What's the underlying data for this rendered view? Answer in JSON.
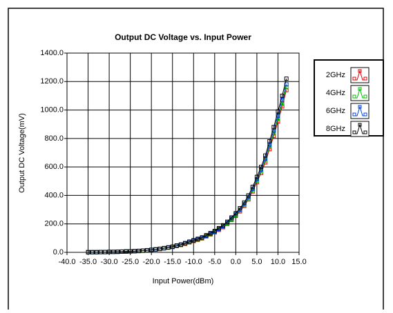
{
  "chart_data": {
    "type": "line",
    "title": "Output DC Voltage vs. Input Power",
    "x_label": "Input Power(dBm)",
    "y_label": "Output DC Voltage(mV)",
    "xlim": [
      -40,
      15
    ],
    "ylim": [
      0,
      1400
    ],
    "xticks": [
      {
        "value": -40,
        "label": "-40.0"
      },
      {
        "value": -35,
        "label": "-35.0"
      },
      {
        "value": -30,
        "label": "-30.0"
      },
      {
        "value": -25,
        "label": "-25.0"
      },
      {
        "value": -20,
        "label": "-20.0"
      },
      {
        "value": -15,
        "label": "-15.0"
      },
      {
        "value": -10,
        "label": "-10.0"
      },
      {
        "value": -5,
        "label": "-5.0"
      },
      {
        "value": 0,
        "label": "0.0"
      },
      {
        "value": 5,
        "label": "5.0"
      },
      {
        "value": 10,
        "label": "10.0"
      },
      {
        "value": 15,
        "label": "15.0"
      }
    ],
    "yticks": [
      {
        "value": 0,
        "label": "0.0"
      },
      {
        "value": 200,
        "label": "200.0"
      },
      {
        "value": 400,
        "label": "400.0"
      },
      {
        "value": 600,
        "label": "600.0"
      },
      {
        "value": 800,
        "label": "800.0"
      },
      {
        "value": 1000,
        "label": "1000.0"
      },
      {
        "value": 1200,
        "label": "1200.0"
      },
      {
        "value": 1400,
        "label": "1400.0"
      }
    ],
    "grid": true,
    "legend": "right",
    "x": [
      -35,
      -34,
      -33,
      -32,
      -31,
      -30,
      -29,
      -28,
      -27,
      -26,
      -25,
      -24,
      -23,
      -22,
      -21,
      -20,
      -19,
      -18,
      -17,
      -16,
      -15,
      -14,
      -13,
      -12,
      -11,
      -10,
      -9,
      -8,
      -7,
      -6,
      -5,
      -4,
      -3,
      -2,
      -1,
      0,
      1,
      2,
      3,
      4,
      5,
      6,
      7,
      8,
      9,
      10,
      11,
      12
    ],
    "series": [
      {
        "name": "2GHz",
        "color": "#e00000",
        "values": [
          1,
          1,
          1,
          2,
          2,
          3,
          3,
          4,
          5,
          6,
          7,
          8,
          9,
          11,
          14,
          17,
          20,
          23,
          28,
          33,
          37,
          45,
          51,
          60,
          70,
          79,
          88,
          98,
          112,
          126,
          140,
          158,
          177,
          200,
          228,
          256,
          288,
          326,
          372,
          428,
          493,
          558,
          632,
          725,
          818,
          920,
          1025,
          1140
        ]
      },
      {
        "name": "4GHz",
        "color": "#00c000",
        "values": [
          1,
          1,
          1,
          2,
          2,
          3,
          3,
          4,
          5,
          6,
          7,
          8,
          9,
          11,
          14,
          17,
          20,
          24,
          28,
          33,
          38,
          45,
          52,
          62,
          71,
          81,
          90,
          100,
          114,
          128,
          143,
          162,
          181,
          204,
          233,
          261,
          295,
          333,
          380,
          437,
          504,
          570,
          646,
          741,
          836,
          940,
          1045,
          1160
        ]
      },
      {
        "name": "6GHz",
        "color": "#0040e0",
        "values": [
          1,
          1,
          1,
          2,
          2,
          3,
          3,
          4,
          5,
          6,
          7,
          8,
          10,
          12,
          14,
          17,
          20,
          24,
          29,
          34,
          39,
          46,
          53,
          63,
          72,
          82,
          92,
          102,
          116,
          131,
          146,
          165,
          184,
          208,
          238,
          267,
          300,
          340,
          388,
          446,
          514,
          582,
          660,
          757,
          855,
          960,
          1070,
          1180
        ]
      },
      {
        "name": "8GHz",
        "color": "#000000",
        "values": [
          1,
          1,
          1,
          2,
          2,
          3,
          3,
          4,
          5,
          6,
          7,
          8,
          10,
          12,
          15,
          18,
          21,
          25,
          30,
          35,
          40,
          48,
          55,
          65,
          75,
          85,
          95,
          105,
          120,
          135,
          150,
          170,
          190,
          215,
          245,
          275,
          310,
          350,
          400,
          460,
          530,
          600,
          680,
          780,
          880,
          990,
          1100,
          1220
        ]
      }
    ]
  }
}
